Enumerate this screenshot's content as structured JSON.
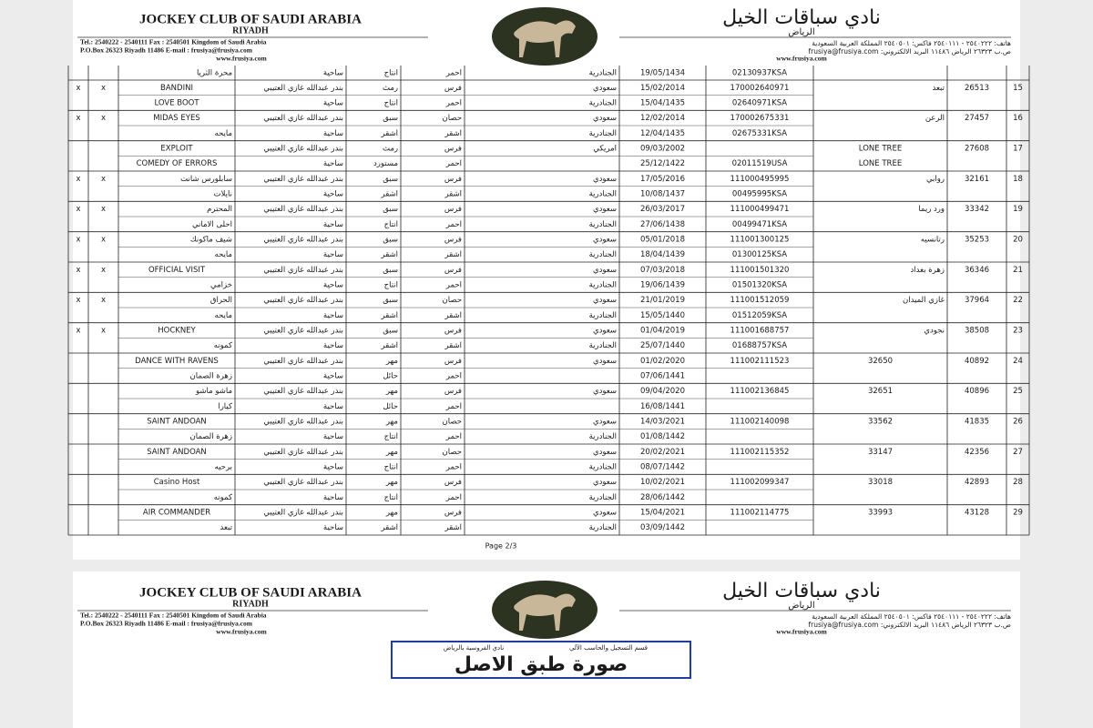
{
  "letterhead": {
    "en_title": "JOCKEY CLUB OF SAUDI ARABIA",
    "en_city": "RIYADH",
    "en_line1": "Tel.: 2540222 - 2540111  Fax : 2540501   Kingdom of Saudi Arabia",
    "en_line2": "P.O.Box 26323 Riyadh 11486   E-mail : frusiya@frusiya.com",
    "en_web": "www.frusiya.com",
    "ar_title": "نادي سباقات الخيل",
    "ar_city": "الرياض",
    "ar_line1": "هاتف: ٢٥٤٠٢٢٢ - ٢٥٤٠١١١  فاكس: ٢٥٤٠٥٠١  المملكة العربية السعودية",
    "ar_line2": "ص.ب ٢٦٣٢٣ الرياض ١١٤٨٦ البريد الالكتروني: frusiya@frusiya.com",
    "ar_web": "www.frusiya.com"
  },
  "table": {
    "partial_row": [
      null,
      null,
      "محرة الثريا",
      "ساحية",
      "انتاج",
      "احمر",
      "الجنادرية",
      "19/05/1434",
      "02130937KSA",
      null,
      null,
      null
    ],
    "rows": [
      {
        "top": [
          "x",
          "x",
          "BANDINI",
          "بندر عبدالله غازي العتيبي",
          "رمث",
          "فرس",
          "سعودي",
          "15/02/2014",
          "170002640971",
          "تبعد",
          "26513",
          "15"
        ],
        "bottom": [
          null,
          null,
          "LOVE BOOT",
          "ساحية",
          "انتاج",
          "احمر",
          "الجنادرية",
          "15/04/1435",
          "02640971KSA",
          null,
          null,
          null
        ]
      },
      {
        "top": [
          "x",
          "x",
          "MIDAS EYES",
          "بندر عبدالله غازي العتيبي",
          "سبق",
          "حصان",
          "سعودي",
          "12/02/2014",
          "170002675331",
          "الرعن",
          "27457",
          "16"
        ],
        "bottom": [
          null,
          null,
          "مايحه",
          "ساحية",
          "اشقر",
          "اشقر",
          "الجنادرية",
          "12/04/1435",
          "02675331KSA",
          null,
          null,
          null
        ]
      },
      {
        "top": [
          null,
          null,
          "EXPLOIT",
          "بندر عبدالله غازي العتيبي",
          "رمث",
          "فرس",
          "امريكي",
          "09/03/2002",
          null,
          "LONE TREE",
          "27608",
          "17"
        ],
        "bottom": [
          null,
          null,
          "COMEDY OF ERRORS",
          "ساحية",
          "مستورد",
          "احمر",
          null,
          "25/12/1422",
          "02011519USA",
          "LONE TREE",
          null,
          null
        ]
      },
      {
        "top": [
          "x",
          "x",
          "سابلورس شانت",
          "بندر عبدالله غازي العتيبي",
          "سبق",
          "فرس",
          "سعودي",
          "17/05/2016",
          "111000495995",
          "روابي",
          "32161",
          "18"
        ],
        "bottom": [
          null,
          null,
          "نايلات",
          "ساحية",
          "اشقر",
          "اشقر",
          "الجنادرية",
          "10/08/1437",
          "00495995KSA",
          null,
          null,
          null
        ]
      },
      {
        "top": [
          "x",
          "x",
          "المحترم",
          "بندر عبدالله غازي العتيبي",
          "سبق",
          "فرس",
          "سعودي",
          "26/03/2017",
          "111000499471",
          "ورد ريما",
          "33342",
          "19"
        ],
        "bottom": [
          null,
          null,
          "احلى الاماني",
          "ساحية",
          "انتاج",
          "احمر",
          "الجنادرية",
          "27/06/1438",
          "00499471KSA",
          null,
          null,
          null
        ]
      },
      {
        "top": [
          "x",
          "x",
          "شيف ماكونك",
          "بندر عبدالله غازي العتيبي",
          "سبق",
          "فرس",
          "سعودي",
          "05/01/2018",
          "111001300125",
          "رتانسيه",
          "35253",
          "20"
        ],
        "bottom": [
          null,
          null,
          "مايحه",
          "ساحية",
          "اشقر",
          "اشقر",
          "الجنادرية",
          "18/04/1439",
          "01300125KSA",
          null,
          null,
          null
        ]
      },
      {
        "top": [
          "x",
          "x",
          "OFFICIAL VISIT",
          "بندر عبدالله غازي العتيبي",
          "سبق",
          "فرس",
          "سعودي",
          "07/03/2018",
          "111001501320",
          "زهرة بغداد",
          "36346",
          "21"
        ],
        "bottom": [
          null,
          null,
          "خزامي",
          "ساحية",
          "انتاج",
          "احمر",
          "الجنادرية",
          "19/06/1439",
          "01501320KSA",
          null,
          null,
          null
        ]
      },
      {
        "top": [
          "x",
          "x",
          "الحراق",
          "بندر عبدالله غازي العتيبي",
          "سبق",
          "حصان",
          "سعودي",
          "21/01/2019",
          "111001512059",
          "غازي الميدان",
          "37964",
          "22"
        ],
        "bottom": [
          null,
          null,
          "مايحه",
          "ساحية",
          "اشقر",
          "اشقر",
          "الجنادرية",
          "15/05/1440",
          "01512059KSA",
          null,
          null,
          null
        ]
      },
      {
        "top": [
          "x",
          "x",
          "HOCKNEY",
          "بندر عبدالله غازي العتيبي",
          "سبق",
          "فرس",
          "سعودي",
          "01/04/2019",
          "111001688757",
          "نجودي",
          "38508",
          "23"
        ],
        "bottom": [
          null,
          null,
          "كمونه",
          "ساحية",
          "اشقر",
          "اشقر",
          "الجنادرية",
          "25/07/1440",
          "01688757KSA",
          null,
          null,
          null
        ]
      },
      {
        "top": [
          null,
          null,
          "DANCE WITH RAVENS",
          "بندر عبدالله غازي العتيبي",
          "مهر",
          "فرس",
          "سعودي",
          "01/02/2020",
          "111002111523",
          "32650",
          "40892",
          "24"
        ],
        "bottom": [
          null,
          null,
          "زهرة الصمان",
          "ساحية",
          "حائل",
          "احمر",
          null,
          "07/06/1441",
          null,
          null,
          null,
          null
        ]
      },
      {
        "top": [
          null,
          null,
          "ماشو ماشو",
          "بندر عبدالله غازي العتيبي",
          "مهر",
          "فرس",
          "سعودي",
          "09/04/2020",
          "111002136845",
          "32651",
          "40896",
          "25"
        ],
        "bottom": [
          null,
          null,
          "كيارا",
          "ساحية",
          "حائل",
          "احمر",
          null,
          "16/08/1441",
          null,
          null,
          null,
          null
        ]
      },
      {
        "top": [
          null,
          null,
          "SAINT ANDOAN",
          "بندر عبدالله غازي العتيبي",
          "مهر",
          "حصان",
          "سعودي",
          "14/03/2021",
          "111002140098",
          "33562",
          "41835",
          "26"
        ],
        "bottom": [
          null,
          null,
          "زهرة الصمان",
          "ساحية",
          "انتاج",
          "احمر",
          "الجنادرية",
          "01/08/1442",
          null,
          null,
          null,
          null
        ]
      },
      {
        "top": [
          null,
          null,
          "SAINT ANDOAN",
          "بندر عبدالله غازي العتيبي",
          "مهر",
          "حصان",
          "سعودي",
          "20/02/2021",
          "111002115352",
          "33147",
          "42356",
          "27"
        ],
        "bottom": [
          null,
          null,
          "برحيه",
          "ساحية",
          "انتاج",
          "احمر",
          "الجنادرية",
          "08/07/1442",
          null,
          null,
          null,
          null
        ]
      },
      {
        "top": [
          null,
          null,
          "Casino Host",
          "بندر عبدالله غازي العتيبي",
          "مهر",
          "فرس",
          "سعودي",
          "10/02/2021",
          "111002099347",
          "33018",
          "42893",
          "28"
        ],
        "bottom": [
          null,
          null,
          "كمونه",
          "ساحية",
          "انتاج",
          "احمر",
          "الجنادرية",
          "28/06/1442",
          null,
          null,
          null,
          null
        ]
      },
      {
        "top": [
          null,
          null,
          "AIR COMMANDER",
          "بندر عبدالله غازي العتيبي",
          "مهر",
          "فرس",
          "سعودي",
          "15/04/2021",
          "111002114775",
          "33993",
          "43128",
          "29"
        ],
        "bottom": [
          null,
          null,
          "تبعد",
          "ساحية",
          "اشقر",
          "اشقر",
          "الجنادرية",
          "03/09/1442",
          null,
          null,
          null,
          null
        ]
      }
    ]
  },
  "page_footer": "Page 2/3",
  "stamp": {
    "org": "نادي الفروسية بالرياض",
    "dept": "قسم التسجيل والحاسب الآلي",
    "text": "صورة طبق الاصل"
  }
}
